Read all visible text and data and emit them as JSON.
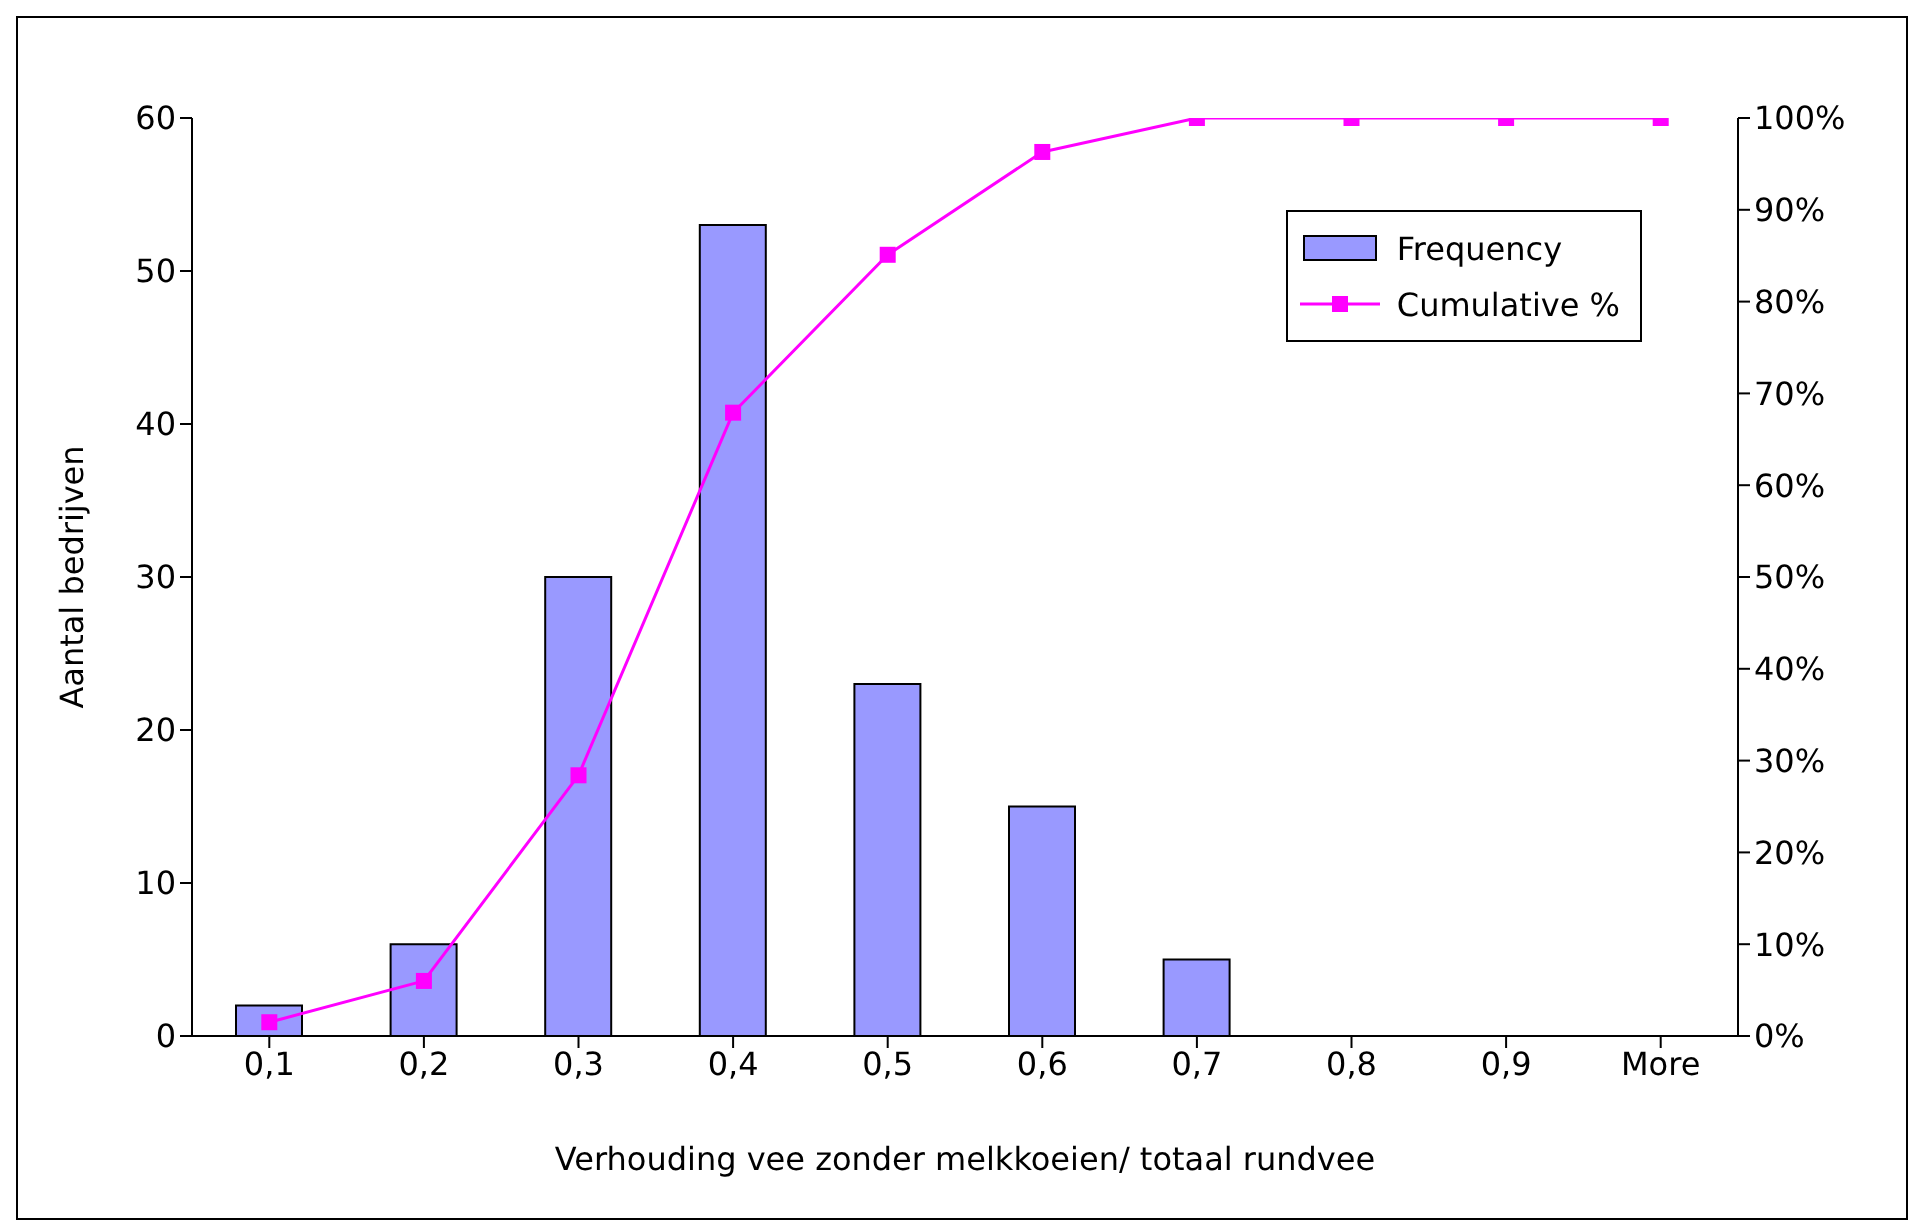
{
  "chart_data": {
    "type": "bar",
    "xlabel": "Verhouding vee zonder melkkoeien/ totaal rundvee",
    "ylabel": "Aantal bedrijven",
    "categories": [
      "0,1",
      "0,2",
      "0,3",
      "0,4",
      "0,5",
      "0,6",
      "0,7",
      "0,8",
      "0,9",
      "More"
    ],
    "series": [
      {
        "name": "Frequency",
        "color": "#9999ff",
        "values": [
          2,
          6,
          30,
          53,
          23,
          15,
          5,
          0,
          0,
          0
        ]
      },
      {
        "name": "Cumulative %",
        "type": "line",
        "axis": "y2",
        "color": "#ff00ff",
        "marker": "square",
        "values": [
          1.5,
          6,
          28.4,
          67.9,
          85.1,
          96.3,
          100,
          100,
          100,
          100
        ]
      }
    ],
    "ylim": [
      0,
      60
    ],
    "yticks": [
      0,
      10,
      20,
      30,
      40,
      50,
      60
    ],
    "y2lim": [
      0,
      100
    ],
    "y2ticks": [
      {
        "value": 0,
        "label": "0%"
      },
      {
        "value": 10,
        "label": "10%"
      },
      {
        "value": 20,
        "label": "20%"
      },
      {
        "value": 30,
        "label": "30%"
      },
      {
        "value": 40,
        "label": "40%"
      },
      {
        "value": 50,
        "label": "50%"
      },
      {
        "value": 60,
        "label": "60%"
      },
      {
        "value": 70,
        "label": "70%"
      },
      {
        "value": 80,
        "label": "80%"
      },
      {
        "value": 90,
        "label": "90%"
      },
      {
        "value": 100,
        "label": "100%"
      }
    ],
    "grid": false,
    "legend": "top right"
  }
}
